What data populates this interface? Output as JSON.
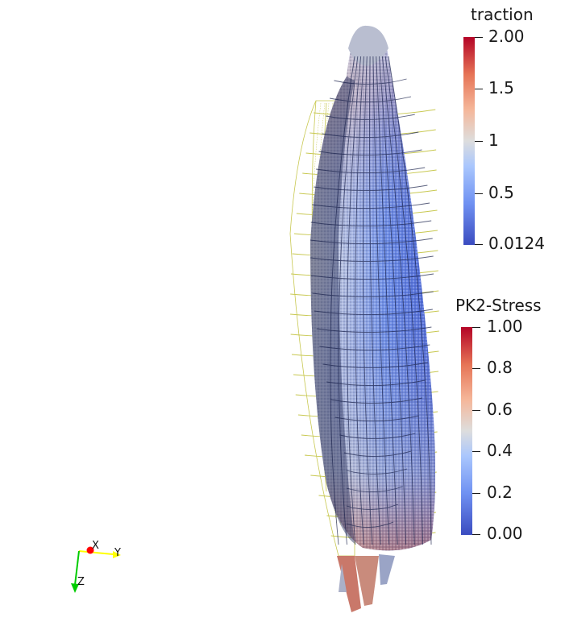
{
  "legends": {
    "traction": {
      "title": "traction",
      "ticks": [
        "2.00",
        "1.5",
        "1",
        "0.5",
        "0.0124"
      ],
      "range": [
        0.0124,
        2.0
      ]
    },
    "pk2": {
      "title": "PK2-Stress",
      "ticks": [
        "1.00",
        "0.8",
        "0.6",
        "0.4",
        "0.2",
        "0.00"
      ],
      "range": [
        0.0,
        1.0
      ]
    }
  },
  "axes": {
    "x_label": "X",
    "y_label": "Y",
    "z_label": "Z",
    "x_color": "#ff0000",
    "y_color": "#ffff00",
    "z_color": "#00cc00"
  },
  "colormap": {
    "low": "#3b4cc0",
    "mid": "#dddddd",
    "high": "#b40426"
  },
  "wireframe_color": "#c8c850"
}
